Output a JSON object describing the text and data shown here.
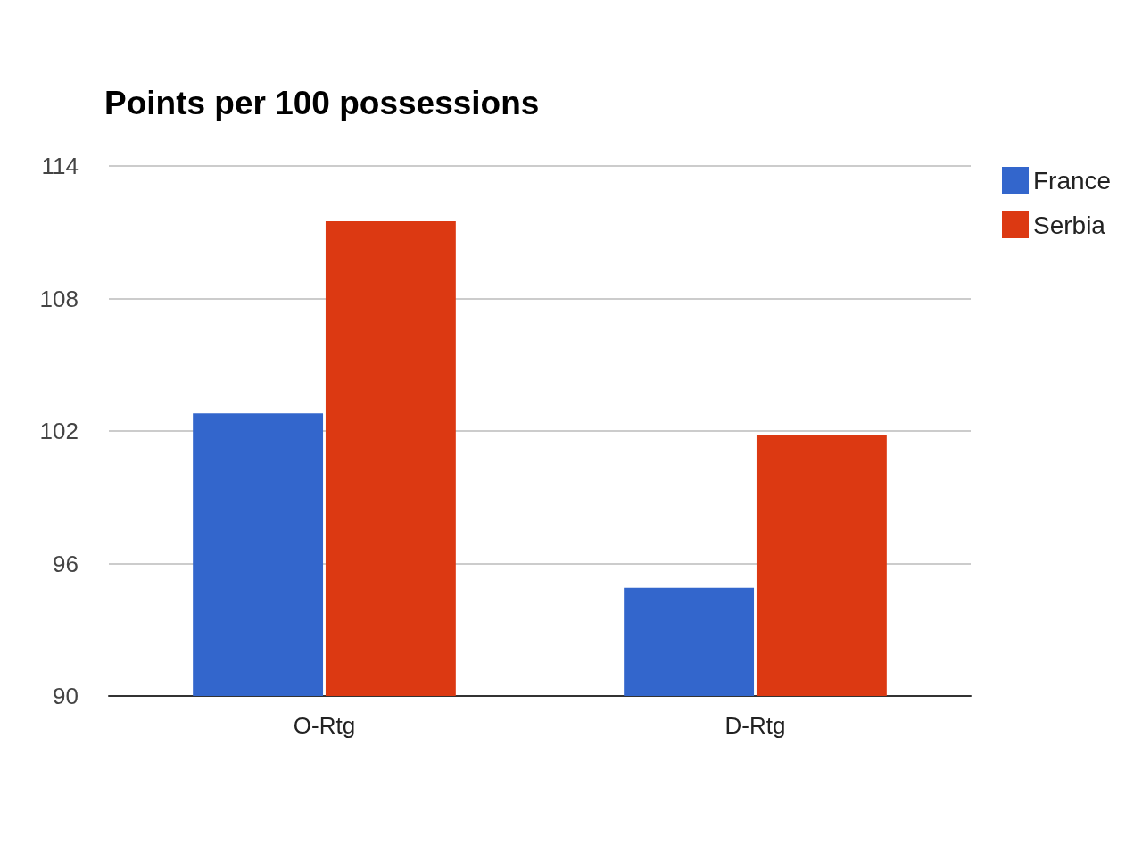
{
  "chart_data": {
    "type": "bar",
    "title": "Points per 100 possessions",
    "categories": [
      "O-Rtg",
      "D-Rtg"
    ],
    "series": [
      {
        "name": "France",
        "color": "#3366cc",
        "values": [
          102.8,
          94.9
        ]
      },
      {
        "name": "Serbia",
        "color": "#dc3912",
        "values": [
          111.5,
          101.8
        ]
      }
    ],
    "ylim": [
      90,
      114
    ],
    "yticks": [
      90,
      96,
      102,
      108,
      114
    ],
    "grid": "y",
    "legend": "top right"
  }
}
